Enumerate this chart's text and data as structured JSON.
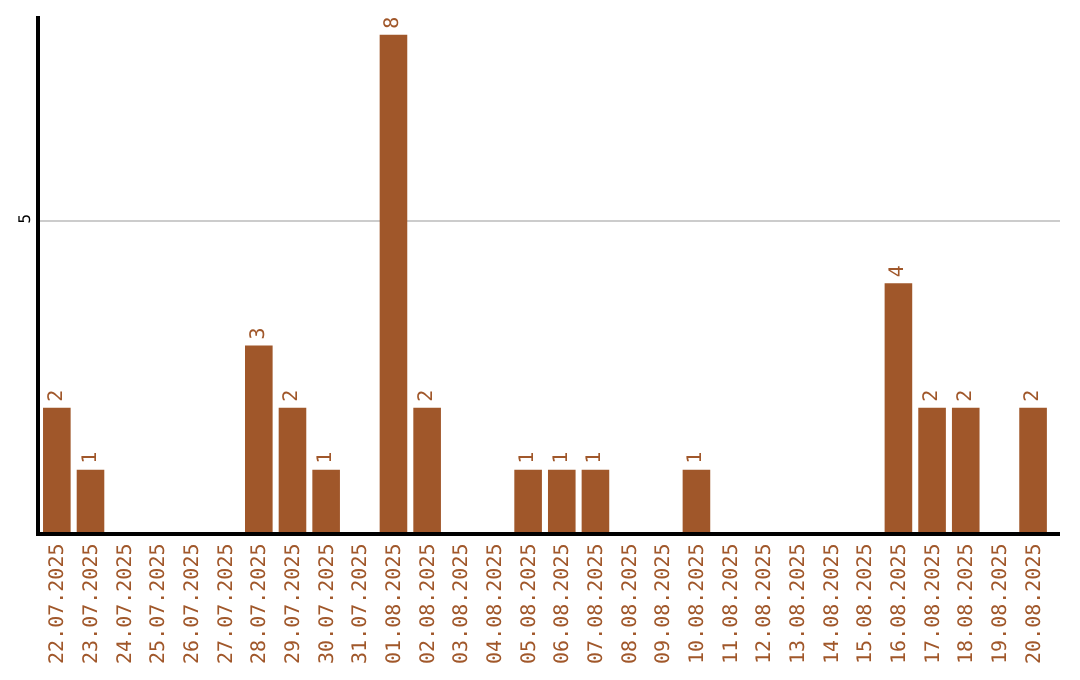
{
  "chart_data": {
    "type": "bar",
    "categories": [
      "22.07.2025",
      "23.07.2025",
      "24.07.2025",
      "25.07.2025",
      "26.07.2025",
      "27.07.2025",
      "28.07.2025",
      "29.07.2025",
      "30.07.2025",
      "31.07.2025",
      "01.08.2025",
      "02.08.2025",
      "03.08.2025",
      "04.08.2025",
      "05.08.2025",
      "06.08.2025",
      "07.08.2025",
      "08.08.2025",
      "09.08.2025",
      "10.08.2025",
      "11.08.2025",
      "12.08.2025",
      "13.08.2025",
      "14.08.2025",
      "15.08.2025",
      "16.08.2025",
      "17.08.2025",
      "18.08.2025",
      "19.08.2025",
      "20.08.2025"
    ],
    "values": [
      2,
      1,
      0,
      0,
      0,
      0,
      3,
      2,
      1,
      0,
      8,
      2,
      0,
      0,
      1,
      1,
      1,
      0,
      0,
      1,
      0,
      0,
      0,
      0,
      0,
      4,
      2,
      2,
      0,
      2
    ],
    "value_labels": [
      "2",
      "1",
      null,
      null,
      null,
      null,
      "3",
      "2",
      "1",
      null,
      "8",
      "2",
      null,
      null,
      "1",
      "1",
      "1",
      null,
      null,
      "1",
      null,
      null,
      null,
      null,
      null,
      "4",
      "2",
      "2",
      null,
      "2"
    ],
    "color": "#a0572a",
    "ylim": [
      0,
      8.3
    ],
    "yticks": [
      0,
      5
    ],
    "grid": "y",
    "legend": false
  }
}
